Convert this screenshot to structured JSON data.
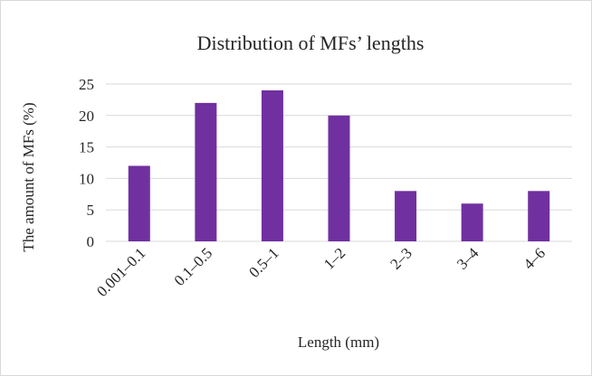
{
  "chart_data": {
    "type": "bar",
    "title": "Distribution of MFs’ lengths",
    "xlabel": "Length (mm)",
    "ylabel": "The amount of MFs (%)",
    "categories": [
      "0.001–0.1",
      "0.1–0.5",
      "0.5–1",
      "1–2",
      "2–3",
      "3–4",
      "4–6"
    ],
    "values": [
      12,
      22,
      24,
      20,
      8,
      6,
      8
    ],
    "ylim": [
      0,
      25
    ],
    "yticks": [
      0,
      5,
      10,
      15,
      20,
      25
    ],
    "grid": true,
    "legend": "none",
    "bar_color": "#7030a0"
  }
}
